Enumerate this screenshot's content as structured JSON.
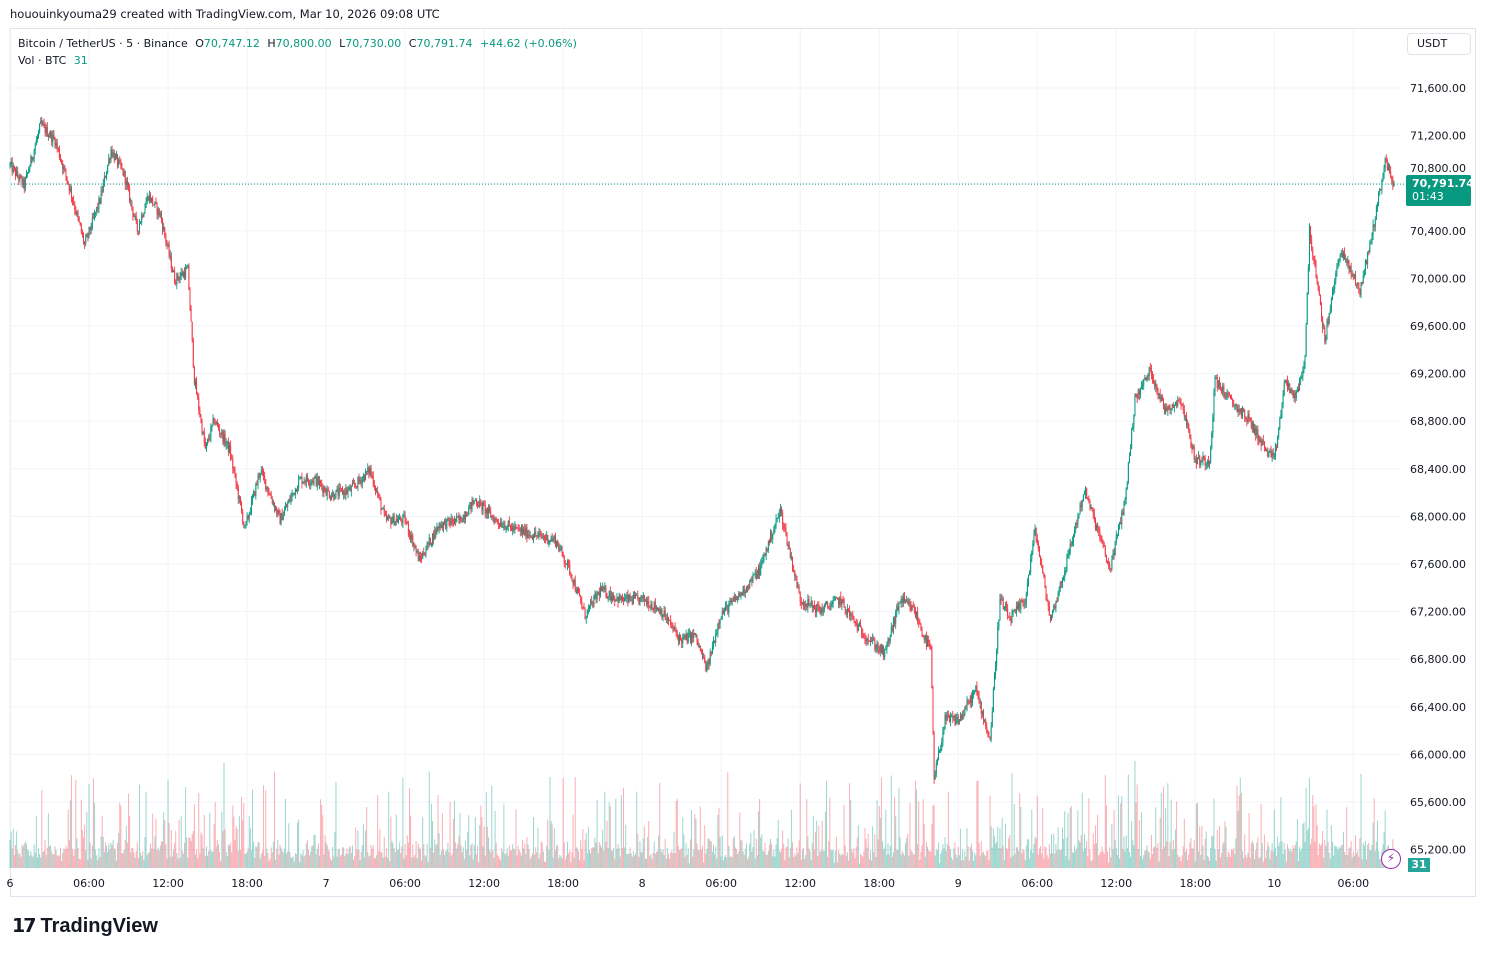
{
  "attribution": "hououinkyouma29 created with TradingView.com, Mar 10, 2026 09:08 UTC",
  "legend": {
    "symbol": "Bitcoin / TetherUS · 5 · Binance",
    "o_label": "O",
    "o": "70,747.12",
    "h_label": "H",
    "h": "70,800.00",
    "l_label": "L",
    "l": "70,730.00",
    "c_label": "C",
    "c": "70,791.74",
    "change": "+44.62 (+0.06%)",
    "vol_label": "Vol · BTC",
    "vol": "31"
  },
  "currency_button": "USDT",
  "last_price": {
    "price": "70,791.74",
    "countdown": "01:43"
  },
  "volume_badge": "31",
  "logo_text": "TradingView",
  "colors": {
    "up": "#089981",
    "down": "#f23645",
    "grid": "#f0f3fa",
    "alert": "#9c27b0"
  },
  "chart_data": {
    "type": "candlestick",
    "interval": "5m",
    "symbol": "BTCUSDT",
    "y_axis": {
      "range": [
        65050,
        71800
      ],
      "ticks": [
        "71,600.00",
        "71,200.00",
        "70,800.00",
        "70,400.00",
        "70,000.00",
        "69,600.00",
        "69,200.00",
        "68,800.00",
        "68,400.00",
        "68,000.00",
        "67,600.00",
        "67,200.00",
        "66,800.00",
        "66,400.00",
        "66,000.00",
        "65,600.00",
        "65,200.00"
      ],
      "tick_values": [
        71600,
        71200,
        70800,
        70400,
        70000,
        69600,
        69200,
        68800,
        68400,
        68000,
        67600,
        67200,
        66800,
        66400,
        66000,
        65600,
        65200
      ]
    },
    "x_axis": {
      "start": "2026-03-06 00:00",
      "ticks": [
        "6",
        "06:00",
        "12:00",
        "18:00",
        "7",
        "06:00",
        "12:00",
        "18:00",
        "8",
        "06:00",
        "12:00",
        "18:00",
        "9",
        "06:00",
        "12:00",
        "18:00",
        "10",
        "06:00"
      ]
    },
    "grid": true,
    "last_close": 70791.74,
    "price_path": [
      [
        "2026-03-06 00:00",
        70950
      ],
      [
        "2026-03-06 01:05",
        70780
      ],
      [
        "2026-03-06 02:20",
        71290
      ],
      [
        "2026-03-06 03:25",
        71160
      ],
      [
        "2026-03-06 04:35",
        70740
      ],
      [
        "2026-03-06 05:40",
        70280
      ],
      [
        "2026-03-06 06:50",
        70660
      ],
      [
        "2026-03-06 07:40",
        71080
      ],
      [
        "2026-03-06 08:40",
        70870
      ],
      [
        "2026-03-06 09:40",
        70410
      ],
      [
        "2026-03-06 10:30",
        70700
      ],
      [
        "2026-03-06 11:25",
        70530
      ],
      [
        "2026-03-06 12:30",
        69990
      ],
      [
        "2026-03-06 13:30",
        70070
      ],
      [
        "2026-03-06 14:00",
        69150
      ],
      [
        "2026-03-06 14:50",
        68560
      ],
      [
        "2026-03-06 15:30",
        68810
      ],
      [
        "2026-03-06 16:40",
        68560
      ],
      [
        "2026-03-06 17:50",
        67890
      ],
      [
        "2026-03-06 19:00",
        68390
      ],
      [
        "2026-03-06 20:30",
        67970
      ],
      [
        "2026-03-06 22:00",
        68310
      ],
      [
        "2026-03-06 23:10",
        68310
      ],
      [
        "2026-03-07 00:20",
        68180
      ],
      [
        "2026-03-07 01:50",
        68220
      ],
      [
        "2026-03-07 03:20",
        68390
      ],
      [
        "2026-03-07 04:30",
        67970
      ],
      [
        "2026-03-07 06:00",
        67970
      ],
      [
        "2026-03-07 07:05",
        67630
      ],
      [
        "2026-03-07 08:35",
        67930
      ],
      [
        "2026-03-07 10:10",
        67970
      ],
      [
        "2026-03-07 11:20",
        68140
      ],
      [
        "2026-03-07 12:50",
        67970
      ],
      [
        "2026-03-07 14:20",
        67890
      ],
      [
        "2026-03-07 15:55",
        67840
      ],
      [
        "2026-03-07 17:25",
        67800
      ],
      [
        "2026-03-07 18:30",
        67550
      ],
      [
        "2026-03-07 19:40",
        67170
      ],
      [
        "2026-03-07 20:50",
        67380
      ],
      [
        "2026-03-07 22:20",
        67300
      ],
      [
        "2026-03-08 00:10",
        67300
      ],
      [
        "2026-03-08 01:25",
        67210
      ],
      [
        "2026-03-08 02:55",
        66960
      ],
      [
        "2026-03-08 04:00",
        67000
      ],
      [
        "2026-03-08 04:55",
        66710
      ],
      [
        "2026-03-08 05:55",
        67170
      ],
      [
        "2026-03-08 07:25",
        67340
      ],
      [
        "2026-03-08 08:55",
        67550
      ],
      [
        "2026-03-08 09:40",
        67800
      ],
      [
        "2026-03-08 10:30",
        68050
      ],
      [
        "2026-03-08 11:10",
        67720
      ],
      [
        "2026-03-08 12:00",
        67300
      ],
      [
        "2026-03-08 13:30",
        67210
      ],
      [
        "2026-03-08 15:00",
        67300
      ],
      [
        "2026-03-08 16:30",
        67050
      ],
      [
        "2026-03-08 18:25",
        66840
      ],
      [
        "2026-03-08 19:35",
        67300
      ],
      [
        "2026-03-08 20:40",
        67210
      ],
      [
        "2026-03-08 21:30",
        66960
      ],
      [
        "2026-03-08 21:55",
        66880
      ],
      [
        "2026-03-08 22:10",
        65790
      ],
      [
        "2026-03-08 23:00",
        66290
      ],
      [
        "2026-03-09 00:05",
        66290
      ],
      [
        "2026-03-09 01:20",
        66540
      ],
      [
        "2026-03-09 02:25",
        66120
      ],
      [
        "2026-03-09 03:10",
        67300
      ],
      [
        "2026-03-09 03:55",
        67130
      ],
      [
        "2026-03-09 05:05",
        67300
      ],
      [
        "2026-03-09 05:50",
        67890
      ],
      [
        "2026-03-09 07:00",
        67130
      ],
      [
        "2026-03-09 08:05",
        67550
      ],
      [
        "2026-03-09 09:35",
        68220
      ],
      [
        "2026-03-09 10:50",
        67800
      ],
      [
        "2026-03-09 11:30",
        67550
      ],
      [
        "2026-03-09 12:40",
        68140
      ],
      [
        "2026-03-09 13:25",
        68980
      ],
      [
        "2026-03-09 14:35",
        69230
      ],
      [
        "2026-03-09 15:40",
        68900
      ],
      [
        "2026-03-09 16:55",
        68980
      ],
      [
        "2026-03-09 18:00",
        68470
      ],
      [
        "2026-03-09 19:05",
        68470
      ],
      [
        "2026-03-09 19:30",
        69150
      ],
      [
        "2026-03-09 20:35",
        68980
      ],
      [
        "2026-03-09 22:05",
        68810
      ],
      [
        "2026-03-09 23:20",
        68560
      ],
      [
        "2026-03-10 00:00",
        68470
      ],
      [
        "2026-03-10 00:50",
        69150
      ],
      [
        "2026-03-10 01:35",
        68980
      ],
      [
        "2026-03-10 02:20",
        69320
      ],
      [
        "2026-03-10 02:40",
        70410
      ],
      [
        "2026-03-10 03:50",
        69490
      ],
      [
        "2026-03-10 05:00",
        70240
      ],
      [
        "2026-03-10 06:30",
        69900
      ],
      [
        "2026-03-10 07:20",
        70320
      ],
      [
        "2026-03-10 08:25",
        70990
      ],
      [
        "2026-03-10 09:05",
        70791.74
      ]
    ]
  }
}
